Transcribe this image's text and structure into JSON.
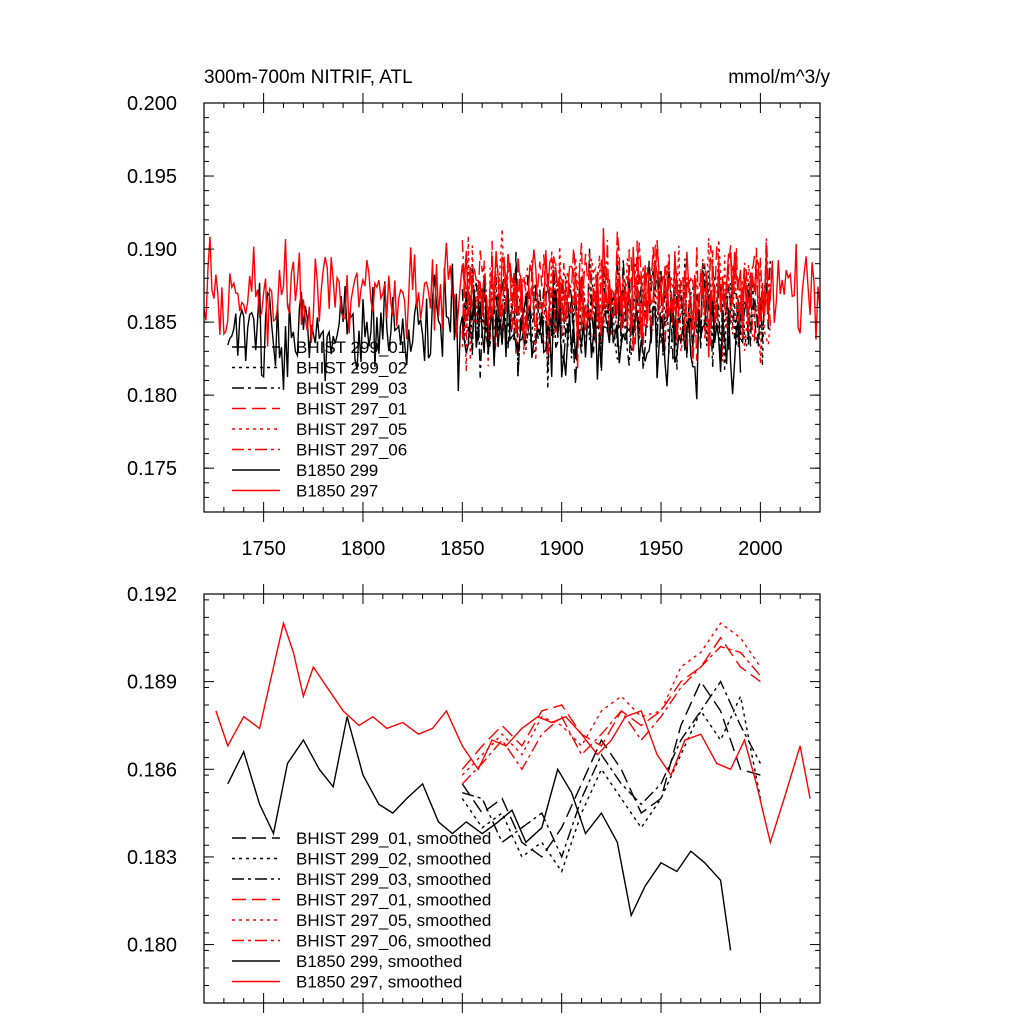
{
  "chart_data": [
    {
      "type": "line",
      "title": "300m-700m NITRIF, ATL",
      "units": "mmol/m^3/y",
      "xlim": [
        1720,
        2030
      ],
      "ylim": [
        0.172,
        0.2
      ],
      "x_ticks": [
        1750,
        1800,
        1850,
        1900,
        1950,
        2000
      ],
      "x_tick_labels": [
        "1750",
        "1800",
        "1850",
        "1900",
        "1950",
        "2000"
      ],
      "y_ticks": [
        0.175,
        0.18,
        0.185,
        0.19,
        0.195,
        0.2
      ],
      "y_tick_labels": [
        "0.175",
        "0.180",
        "0.185",
        "0.190",
        "0.195",
        "0.200"
      ],
      "legend_position": "lower-left",
      "series": [
        {
          "name": "BHIST 299_01",
          "color": "#000000",
          "dash": "long-dash",
          "x_start": 1850,
          "x_end": 2005,
          "mean": 0.1855,
          "amplitude": 0.0032,
          "seed": 11
        },
        {
          "name": "BHIST 299_02",
          "color": "#000000",
          "dash": "dot",
          "x_start": 1850,
          "x_end": 2005,
          "mean": 0.1855,
          "amplitude": 0.0034,
          "seed": 12
        },
        {
          "name": "BHIST 299_03",
          "color": "#000000",
          "dash": "dash-dot",
          "x_start": 1850,
          "x_end": 2005,
          "mean": 0.1855,
          "amplitude": 0.0032,
          "seed": 13
        },
        {
          "name": "BHIST 297_01",
          "color": "#ff0000",
          "dash": "long-dash",
          "x_start": 1850,
          "x_end": 2005,
          "mean": 0.1868,
          "amplitude": 0.0036,
          "seed": 21
        },
        {
          "name": "BHIST 297_05",
          "color": "#ff0000",
          "dash": "dot",
          "x_start": 1850,
          "x_end": 2005,
          "mean": 0.1868,
          "amplitude": 0.0036,
          "seed": 22
        },
        {
          "name": "BHIST 297_06",
          "color": "#ff0000",
          "dash": "dash-dot",
          "x_start": 1850,
          "x_end": 2005,
          "mean": 0.1868,
          "amplitude": 0.0036,
          "seed": 23
        },
        {
          "name": "B1850 299",
          "color": "#000000",
          "dash": "solid",
          "x_start": 1732,
          "x_end": 1990,
          "mean": 0.1843,
          "amplitude": 0.003,
          "seed": 31
        },
        {
          "name": "B1850 297",
          "color": "#ff0000",
          "dash": "solid",
          "x_start": 1720,
          "x_end": 2030,
          "mean": 0.1872,
          "amplitude": 0.0028,
          "seed": 32
        }
      ]
    },
    {
      "type": "line",
      "title": "",
      "units": "",
      "xlim": [
        1720,
        2030
      ],
      "ylim": [
        0.178,
        0.192
      ],
      "x_ticks": [
        1750,
        1800,
        1850,
        1900,
        1950,
        2000
      ],
      "y_ticks": [
        0.18,
        0.183,
        0.186,
        0.189,
        0.192
      ],
      "y_tick_labels": [
        "0.180",
        "0.183",
        "0.186",
        "0.189",
        "0.192"
      ],
      "legend_position": "lower-left",
      "series": [
        {
          "name": "BHIST 299_01, smoothed",
          "color": "#000000",
          "dash": "long-dash",
          "x": [
            1850,
            1860,
            1870,
            1880,
            1890,
            1900,
            1910,
            1920,
            1930,
            1940,
            1950,
            1960,
            1970,
            1980,
            1990,
            2000
          ],
          "y": [
            0.1855,
            0.1845,
            0.185,
            0.1835,
            0.183,
            0.184,
            0.1855,
            0.187,
            0.186,
            0.1845,
            0.185,
            0.1875,
            0.189,
            0.188,
            0.186,
            0.1858
          ]
        },
        {
          "name": "BHIST 299_02, smoothed",
          "color": "#000000",
          "dash": "dot",
          "x": [
            1850,
            1860,
            1870,
            1880,
            1890,
            1900,
            1910,
            1920,
            1930,
            1940,
            1950,
            1960,
            1970,
            1980,
            1990,
            2000
          ],
          "y": [
            0.185,
            0.184,
            0.1845,
            0.183,
            0.1835,
            0.1825,
            0.1845,
            0.186,
            0.185,
            0.184,
            0.185,
            0.1865,
            0.188,
            0.187,
            0.1885,
            0.185
          ]
        },
        {
          "name": "BHIST 299_03, smoothed",
          "color": "#000000",
          "dash": "dash-dot",
          "x": [
            1850,
            1860,
            1870,
            1880,
            1890,
            1900,
            1910,
            1920,
            1930,
            1940,
            1950,
            1960,
            1970,
            1980,
            1990,
            2000
          ],
          "y": [
            0.1852,
            0.185,
            0.1835,
            0.184,
            0.1845,
            0.183,
            0.185,
            0.1865,
            0.1855,
            0.1848,
            0.1855,
            0.187,
            0.188,
            0.189,
            0.1875,
            0.1862
          ]
        },
        {
          "name": "BHIST 297_01, smoothed",
          "color": "#ff0000",
          "dash": "long-dash",
          "x": [
            1850,
            1860,
            1870,
            1880,
            1890,
            1900,
            1910,
            1920,
            1930,
            1940,
            1950,
            1960,
            1970,
            1980,
            1990,
            2000
          ],
          "y": [
            0.186,
            0.1868,
            0.1875,
            0.1868,
            0.188,
            0.1882,
            0.1872,
            0.1868,
            0.188,
            0.1875,
            0.188,
            0.189,
            0.1895,
            0.1905,
            0.1895,
            0.189
          ]
        },
        {
          "name": "BHIST 297_05, smoothed",
          "color": "#ff0000",
          "dash": "dot",
          "x": [
            1850,
            1860,
            1870,
            1880,
            1890,
            1900,
            1910,
            1920,
            1930,
            1940,
            1950,
            1960,
            1970,
            1980,
            1990,
            2000
          ],
          "y": [
            0.1858,
            0.1865,
            0.1872,
            0.1865,
            0.1878,
            0.1875,
            0.1868,
            0.188,
            0.1885,
            0.1878,
            0.188,
            0.1895,
            0.19,
            0.191,
            0.1905,
            0.1895
          ]
        },
        {
          "name": "BHIST 297_06, smoothed",
          "color": "#ff0000",
          "dash": "dash-dot",
          "x": [
            1850,
            1860,
            1870,
            1880,
            1890,
            1900,
            1910,
            1920,
            1930,
            1940,
            1950,
            1960,
            1970,
            1980,
            1990,
            2000
          ],
          "y": [
            0.1855,
            0.1862,
            0.187,
            0.186,
            0.1872,
            0.1878,
            0.1865,
            0.1872,
            0.188,
            0.187,
            0.1878,
            0.1888,
            0.1895,
            0.1902,
            0.19,
            0.1892
          ]
        },
        {
          "name": "B1850 299, smoothed",
          "color": "#000000",
          "dash": "solid",
          "x": [
            1732,
            1740,
            1748,
            1755,
            1762,
            1770,
            1778,
            1785,
            1792,
            1800,
            1808,
            1815,
            1822,
            1830,
            1838,
            1845,
            1852,
            1860,
            1868,
            1875,
            1882,
            1890,
            1898,
            1905,
            1912,
            1920,
            1928,
            1935,
            1942,
            1950,
            1958,
            1965,
            1972,
            1980,
            1985
          ],
          "y": [
            0.1855,
            0.1866,
            0.1848,
            0.1838,
            0.1862,
            0.187,
            0.186,
            0.1854,
            0.1878,
            0.1858,
            0.1848,
            0.1845,
            0.185,
            0.1855,
            0.1842,
            0.1838,
            0.1842,
            0.1838,
            0.1842,
            0.1846,
            0.1835,
            0.184,
            0.186,
            0.1852,
            0.1838,
            0.1845,
            0.1835,
            0.181,
            0.182,
            0.1828,
            0.1825,
            0.1832,
            0.1828,
            0.1822,
            0.1798
          ]
        },
        {
          "name": "B1850 297, smoothed",
          "color": "#ff0000",
          "dash": "solid",
          "x": [
            1726,
            1732,
            1740,
            1748,
            1755,
            1760,
            1765,
            1770,
            1775,
            1782,
            1790,
            1798,
            1805,
            1812,
            1820,
            1828,
            1835,
            1842,
            1850,
            1858,
            1865,
            1872,
            1880,
            1888,
            1895,
            1902,
            1910,
            1918,
            1925,
            1932,
            1940,
            1948,
            1955,
            1962,
            1970,
            1978,
            1985,
            1992,
            1998,
            2005,
            2012,
            2020,
            2025
          ],
          "y": [
            0.188,
            0.1868,
            0.1878,
            0.1874,
            0.1895,
            0.191,
            0.19,
            0.1885,
            0.1895,
            0.1888,
            0.188,
            0.1875,
            0.1878,
            0.1874,
            0.1876,
            0.1872,
            0.1874,
            0.188,
            0.1868,
            0.186,
            0.187,
            0.1868,
            0.1874,
            0.1878,
            0.1876,
            0.1878,
            0.1872,
            0.1865,
            0.187,
            0.1878,
            0.188,
            0.1865,
            0.1858,
            0.187,
            0.1872,
            0.1862,
            0.186,
            0.187,
            0.1855,
            0.1835,
            0.185,
            0.1868,
            0.185
          ]
        }
      ]
    }
  ]
}
